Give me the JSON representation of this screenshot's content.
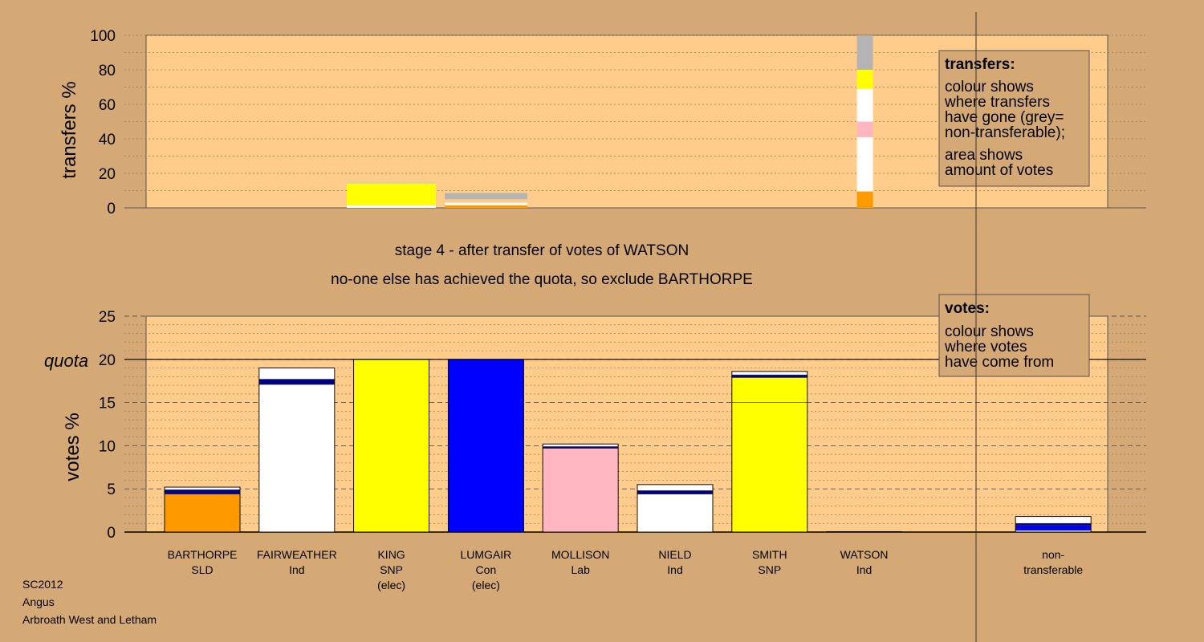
{
  "chart_data": [
    {
      "type": "bar",
      "name": "transfers",
      "ylabel": "transfers %",
      "ylim": [
        0,
        100
      ],
      "yticks": [
        0,
        20,
        40,
        60,
        80,
        100
      ],
      "segments": [
        {
          "cat": 2,
          "y0": 0,
          "y1": 1.5,
          "color": "#ffffff"
        },
        {
          "cat": 2,
          "y0": 1.5,
          "y1": 14,
          "color": "#ffff00"
        },
        {
          "cat": 2,
          "y0": 14,
          "y1": 15,
          "color": "#d6d6a0"
        },
        {
          "cat": 3,
          "y0": 0,
          "y1": 1.5,
          "color": "#ff9900"
        },
        {
          "cat": 3,
          "y0": 1.5,
          "y1": 3,
          "color": "#ffffff"
        },
        {
          "cat": 3,
          "y0": 3,
          "y1": 5,
          "color": "#ffcc88"
        },
        {
          "cat": 3,
          "y0": 5,
          "y1": 8.5,
          "color": "#b4b4b4"
        },
        {
          "cat": 7,
          "y0": 0,
          "y1": 9.5,
          "color": "#ff9900"
        },
        {
          "cat": 7,
          "y0": 9.5,
          "y1": 41,
          "color": "#ffffff"
        },
        {
          "cat": 7,
          "y0": 41,
          "y1": 50,
          "color": "#ffb6c1"
        },
        {
          "cat": 7,
          "y0": 50,
          "y1": 69,
          "color": "#ffffff"
        },
        {
          "cat": 7,
          "y0": 69,
          "y1": 80,
          "color": "#ffff00"
        },
        {
          "cat": 7,
          "y0": 80,
          "y1": 100,
          "color": "#b4b4b4"
        }
      ],
      "legend": {
        "title": "transfers:",
        "lines": [
          "colour shows",
          "where transfers",
          "have gone (grey=",
          "non-transferable);"
        ],
        "lines2": [
          "area shows",
          "amount of votes"
        ]
      }
    },
    {
      "type": "bar",
      "name": "votes",
      "ylabel": "votes %",
      "quota_label": "quota",
      "quota": 20,
      "ylim": [
        0,
        25
      ],
      "yticks": [
        0,
        5,
        10,
        15,
        20,
        25
      ],
      "categories": [
        {
          "name": "BARTHORPE",
          "party": "SLD",
          "note": ""
        },
        {
          "name": "FAIRWEATHER",
          "party": "Ind",
          "note": ""
        },
        {
          "name": "KING",
          "party": "SNP",
          "note": "(elec)"
        },
        {
          "name": "LUMGAIR",
          "party": "Con",
          "note": "(elec)"
        },
        {
          "name": "MOLLISON",
          "party": "Lab",
          "note": ""
        },
        {
          "name": "NIELD",
          "party": "Ind",
          "note": ""
        },
        {
          "name": "SMITH",
          "party": "SNP",
          "note": ""
        },
        {
          "name": "WATSON",
          "party": "Ind",
          "note": ""
        },
        {
          "name": "",
          "party": "",
          "note": ""
        },
        {
          "name": "non-",
          "party": "transferable",
          "note": ""
        }
      ],
      "stacks": [
        [
          {
            "v": 4.4,
            "color": "#ff9900"
          },
          {
            "v": 0.5,
            "color": "#00008b"
          },
          {
            "v": 0.3,
            "color": "#ffffff"
          }
        ],
        [
          {
            "v": 17.1,
            "color": "#ffffff"
          },
          {
            "v": 0.6,
            "color": "#00008b"
          },
          {
            "v": 1.3,
            "color": "#ffffff"
          }
        ],
        [
          {
            "v": 20.0,
            "color": "#ffff00"
          }
        ],
        [
          {
            "v": 20.0,
            "color": "#0000ff"
          }
        ],
        [
          {
            "v": 9.7,
            "color": "#ffb6c1"
          },
          {
            "v": 0.2,
            "color": "#00008b"
          },
          {
            "v": 0.3,
            "color": "#ffffff"
          }
        ],
        [
          {
            "v": 4.4,
            "color": "#ffffff"
          },
          {
            "v": 0.4,
            "color": "#00008b"
          },
          {
            "v": 0.7,
            "color": "#ffffff"
          }
        ],
        [
          {
            "v": 15.0,
            "color": "#ffff00"
          },
          {
            "v": 2.9,
            "color": "#ffff00"
          },
          {
            "v": 0.3,
            "color": "#00008b"
          },
          {
            "v": 0.4,
            "color": "#ffffff"
          }
        ],
        [
          {
            "v": 0.05,
            "color": "#000000"
          }
        ],
        [],
        [
          {
            "v": 0.2,
            "color": "#ffffff"
          },
          {
            "v": 0.6,
            "color": "#0000ff"
          },
          {
            "v": 0.2,
            "color": "#00008b"
          },
          {
            "v": 0.8,
            "color": "#ffffff"
          }
        ]
      ],
      "legend": {
        "title": "votes:",
        "lines": [
          "colour shows",
          "where votes",
          "have come from"
        ]
      }
    }
  ],
  "headings": {
    "stage": "stage 4 - after transfer of votes of WATSON",
    "action": "no-one else has achieved the quota, so exclude BARTHORPE"
  },
  "footer": {
    "line1": "SC2012",
    "line2": "Angus",
    "line3": "Arbroath West and Letham"
  }
}
